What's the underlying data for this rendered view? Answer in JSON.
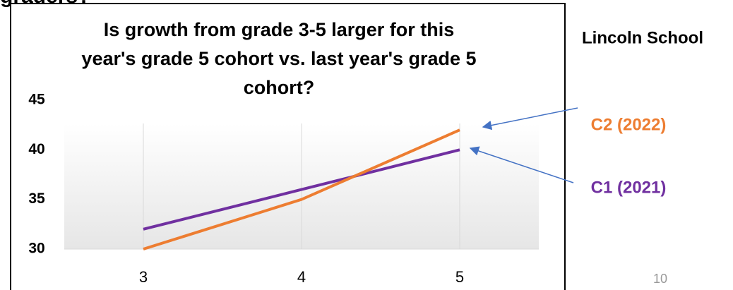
{
  "slide": {
    "heading": "graders?",
    "page_number": "10"
  },
  "chart_data": {
    "type": "line",
    "title": "Is growth from grade 3-5 larger for this year's grade 5 cohort vs. last year's grade 5 cohort?",
    "subtitle": "Lincoln School",
    "x": [
      3,
      4,
      5
    ],
    "series": [
      {
        "name": "C1 (2021)",
        "color": "#7030a0",
        "values": [
          32,
          36,
          40
        ]
      },
      {
        "name": "C2 (2022)",
        "color": "#ed7d31",
        "values": [
          30,
          35,
          42
        ]
      }
    ],
    "xlim": [
      2.5,
      5.5
    ],
    "xticks": [
      3,
      4,
      5
    ],
    "ylim": [
      30,
      45
    ],
    "yticks": [
      30,
      35,
      40,
      45
    ],
    "grid": true
  }
}
